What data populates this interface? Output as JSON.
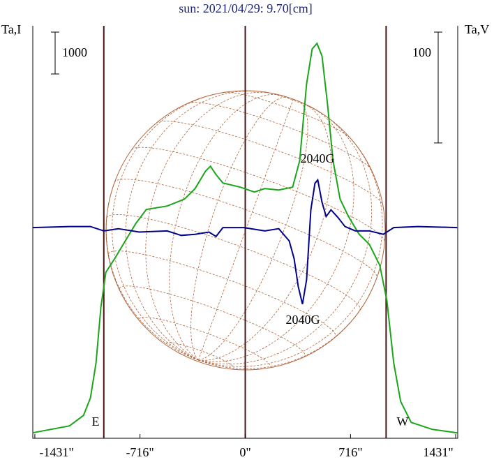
{
  "chart_data": {
    "type": "line",
    "title": "sun: 2021/04/29: 9.70[cm]",
    "ylabel": "Ta,I",
    "y2label": "Ta,V",
    "xlim": [
      -1445,
      1445
    ],
    "ylim": [
      -130,
      9720
    ],
    "y2lim": [
      -190,
      182
    ],
    "xticks": [
      {
        "value": -1431,
        "label": "-1431\""
      },
      {
        "value": -716,
        "label": "-716\""
      },
      {
        "value": 0,
        "label": "0\""
      },
      {
        "value": 716,
        "label": "716\""
      },
      {
        "value": 1431,
        "label": "1431\""
      }
    ],
    "vlines": [
      -962,
      0,
      958
    ],
    "scale_bars": [
      {
        "label": "1000",
        "value": 1000
      },
      {
        "label": "100",
        "value": 100,
        "axis": "y2"
      }
    ],
    "annotations": [
      "2040G",
      "2040G",
      "E",
      "W"
    ],
    "series": [
      {
        "color": "#1aa51a",
        "x": [
          -1446,
          -1195,
          -1100,
          -1053,
          -1015,
          -982,
          -948,
          -887,
          -816,
          -744,
          -673,
          -531,
          -413,
          -341,
          -270,
          -237,
          -199,
          -152,
          -33,
          62,
          133,
          228,
          322,
          370,
          417,
          455,
          488,
          522,
          560,
          597,
          645,
          702,
          773,
          844,
          915,
          963,
          1010,
          1057,
          1128,
          1271,
          1441
        ],
        "values": [
          0,
          167,
          417,
          833,
          1667,
          3000,
          3833,
          4167,
          4583,
          5000,
          5333,
          5417,
          5583,
          5833,
          6250,
          6367,
          6167,
          5967,
          5867,
          5750,
          5833,
          5800,
          5867,
          6500,
          8333,
          9167,
          9300,
          9000,
          7833,
          6500,
          5583,
          5167,
          4750,
          4500,
          4000,
          3167,
          1667,
          750,
          250,
          83,
          0
        ]
      },
      {
        "color": "#00008b",
        "axis": "y2",
        "x": [
          -1446,
          -1195,
          -1053,
          -962,
          -863,
          -721,
          -531,
          -436,
          -341,
          -247,
          -199,
          -152,
          -9,
          133,
          228,
          299,
          332,
          360,
          389,
          417,
          446,
          474,
          493,
          522,
          550,
          583,
          631,
          678,
          749,
          844,
          939,
          1010,
          1176,
          1441
        ],
        "values": [
          0,
          1,
          1,
          -3,
          -1,
          -4,
          -3,
          -7,
          -6,
          -4,
          -8,
          0,
          0,
          -3,
          -1,
          -12,
          -28,
          -53,
          -69,
          -47,
          16,
          40,
          43,
          23,
          10,
          16,
          9,
          1,
          -3,
          -3,
          -6,
          0,
          1,
          0
        ]
      }
    ]
  }
}
